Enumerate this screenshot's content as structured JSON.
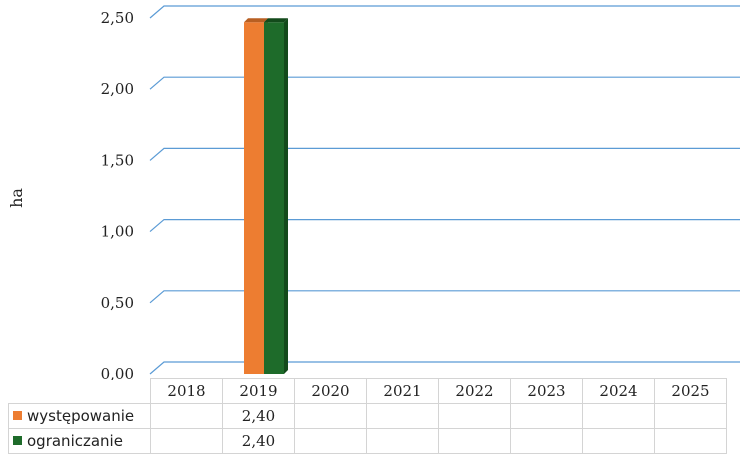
{
  "chart_data": {
    "type": "bar",
    "title": "",
    "xlabel": "",
    "ylabel": "ha",
    "ylim": [
      0,
      2.5
    ],
    "yticks": [
      "0,00",
      "0,50",
      "1,00",
      "1,50",
      "2,00",
      "2,50"
    ],
    "categories": [
      "2018",
      "2019",
      "2020",
      "2021",
      "2022",
      "2023",
      "2024",
      "2025"
    ],
    "series": [
      {
        "name": "występowanie",
        "color": "#ED7D31",
        "values": [
          null,
          2.4,
          null,
          null,
          null,
          null,
          null,
          null
        ],
        "labels": [
          "",
          "2,40",
          "",
          "",
          "",
          "",
          "",
          ""
        ]
      },
      {
        "name": "ograniczanie",
        "color": "#1E6B2A",
        "values": [
          null,
          2.4,
          null,
          null,
          null,
          null,
          null,
          null
        ],
        "labels": [
          "",
          "2,40",
          "",
          "",
          "",
          "",
          "",
          ""
        ]
      }
    ],
    "grid": true,
    "legend": "data-table"
  }
}
